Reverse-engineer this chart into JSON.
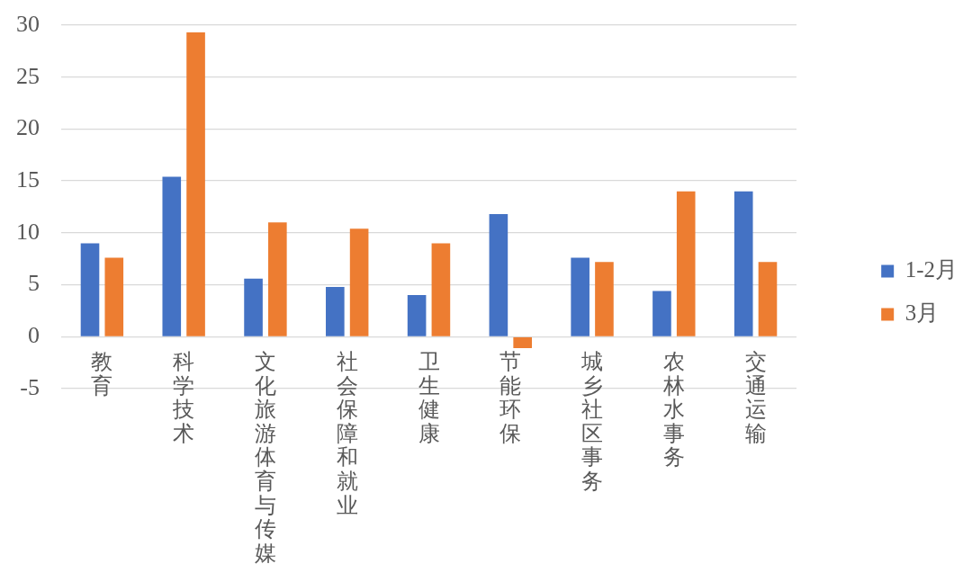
{
  "chart_data": {
    "type": "bar",
    "categories": [
      "教育",
      "科学技术",
      "文化旅游体育与传媒",
      "社会保障和就业",
      "卫生健康",
      "节能环保",
      "城乡社区事务",
      "农林水事务",
      "交通运输"
    ],
    "series": [
      {
        "name": "1-2月",
        "color": "#4472c4",
        "values": [
          9.0,
          15.4,
          5.6,
          4.8,
          4.0,
          11.8,
          7.6,
          4.4,
          14.0
        ]
      },
      {
        "name": "3月",
        "color": "#ed7d31",
        "values": [
          7.6,
          29.3,
          11.0,
          10.4,
          9.0,
          -1.1,
          7.2,
          14.0,
          7.2
        ]
      }
    ],
    "ylim": [
      -5,
      30
    ],
    "yticks": [
      -5,
      0,
      5,
      10,
      15,
      20,
      25,
      30
    ],
    "grid": "y",
    "legend": "right"
  }
}
